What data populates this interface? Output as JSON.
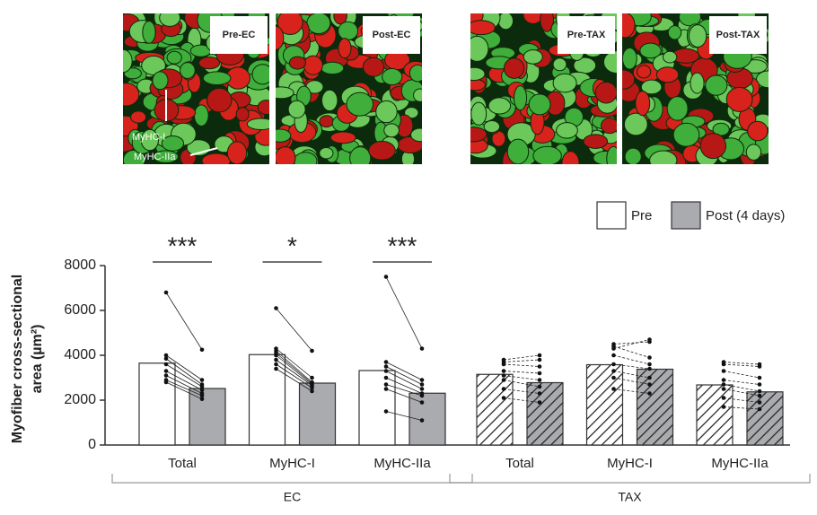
{
  "micrographs": [
    {
      "label": "Pre-EC",
      "arrows": [
        "MyHC-I",
        "MyHC-IIa"
      ]
    },
    {
      "label": "Post-EC"
    },
    {
      "label": "Pre-TAX"
    },
    {
      "label": "Post-TAX"
    }
  ],
  "chart_data": {
    "type": "bar",
    "ylabel": [
      "Myofiber cross-sectional",
      "area (µm²)"
    ],
    "ylim": [
      0,
      8000
    ],
    "yticks": [
      0,
      2000,
      4000,
      6000,
      8000
    ],
    "groups": [
      {
        "label": "EC",
        "categories": [
          "Total",
          "MyHC-I",
          "MyHC-IIa"
        ],
        "hatched": false
      },
      {
        "label": "TAX",
        "categories": [
          "Total",
          "MyHC-I",
          "MyHC-IIa"
        ],
        "hatched": true
      }
    ],
    "series": [
      {
        "name": "Pre",
        "color": "#ffffff",
        "values": [
          3650,
          4030,
          3320,
          3150,
          3580,
          2680
        ]
      },
      {
        "name": "Post (4 days)",
        "color": "#a9abae",
        "values": [
          2520,
          2760,
          2310,
          2780,
          3380,
          2370
        ]
      }
    ],
    "significance": [
      "***",
      "*",
      "***",
      null,
      null,
      null
    ],
    "subjects": [
      [
        [
          6800,
          4250
        ],
        [
          4000,
          2900
        ],
        [
          3850,
          2700
        ],
        [
          3600,
          2600
        ],
        [
          3300,
          2450
        ],
        [
          3100,
          2300
        ],
        [
          2900,
          2200
        ],
        [
          2800,
          2050
        ]
      ],
      [
        [
          6100,
          4200
        ],
        [
          4300,
          3000
        ],
        [
          4200,
          2800
        ],
        [
          4100,
          2750
        ],
        [
          4000,
          2700
        ],
        [
          3800,
          2650
        ],
        [
          3600,
          2550
        ],
        [
          3400,
          2400
        ]
      ],
      [
        [
          7500,
          4300
        ],
        [
          3700,
          2900
        ],
        [
          3500,
          2700
        ],
        [
          3300,
          2500
        ],
        [
          3000,
          2300
        ],
        [
          2700,
          2200
        ],
        [
          2500,
          1900
        ],
        [
          1500,
          1100
        ]
      ],
      [
        [
          3800,
          4000
        ],
        [
          3700,
          3800
        ],
        [
          3600,
          3500
        ],
        [
          3300,
          3200
        ],
        [
          3100,
          2900
        ],
        [
          2900,
          2600
        ],
        [
          2500,
          2300
        ],
        [
          2100,
          1900
        ]
      ],
      [
        [
          4500,
          4600
        ],
        [
          4400,
          3900
        ],
        [
          4300,
          4700
        ],
        [
          4000,
          3600
        ],
        [
          3600,
          3400
        ],
        [
          3300,
          3000
        ],
        [
          3000,
          2700
        ],
        [
          2500,
          2300
        ]
      ],
      [
        [
          3700,
          3600
        ],
        [
          3600,
          3500
        ],
        [
          3300,
          3000
        ],
        [
          2900,
          2700
        ],
        [
          2700,
          2400
        ],
        [
          2500,
          2200
        ],
        [
          2100,
          1900
        ],
        [
          1700,
          1600
        ]
      ]
    ]
  }
}
